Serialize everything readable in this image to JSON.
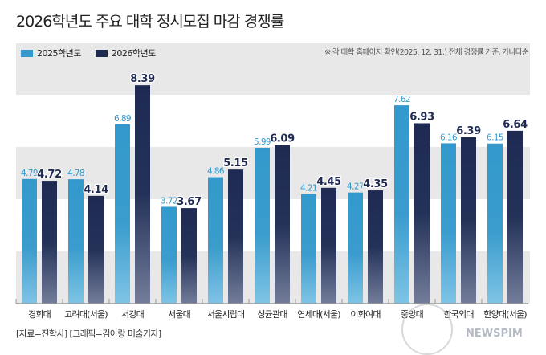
{
  "title": "2026학년도 주요 대학 정시모집 마감 경쟁률",
  "note": "※ 각 대학 홈페이지 확인(2025. 12. 31.) 전체 경쟁률 기준, 가나다순",
  "source": "[자료=진학사] [그래픽=김아랑 미술기자]",
  "watermark": "NEWSPIM",
  "colors": {
    "series_2025": "#3399cc",
    "series_2026": "#1e2a52",
    "band": "#e8e8e8",
    "label_2025": "#3399cc",
    "label_2026": "#1e2a52"
  },
  "chart_data": {
    "type": "bar",
    "title": "2026학년도 주요 대학 정시모집 마감 경쟁률",
    "xlabel": "",
    "ylabel": "",
    "ylim": [
      0,
      8.4
    ],
    "grid": "alternating horizontal bands",
    "legend": "top-left",
    "categories": [
      "경희대",
      "고려대(서울)",
      "서강대",
      "서울대",
      "서울시립대",
      "성균관대",
      "연세대(서울)",
      "이화여대",
      "중앙대",
      "한국외대",
      "한양대(서울)"
    ],
    "series": [
      {
        "name": "2025학년도",
        "values": [
          4.79,
          4.78,
          6.89,
          3.72,
          4.86,
          5.99,
          4.21,
          4.27,
          7.62,
          6.16,
          6.15
        ]
      },
      {
        "name": "2026학년도",
        "values": [
          4.72,
          4.14,
          8.39,
          3.67,
          5.15,
          6.09,
          4.45,
          4.35,
          6.93,
          6.39,
          6.64
        ]
      }
    ]
  }
}
